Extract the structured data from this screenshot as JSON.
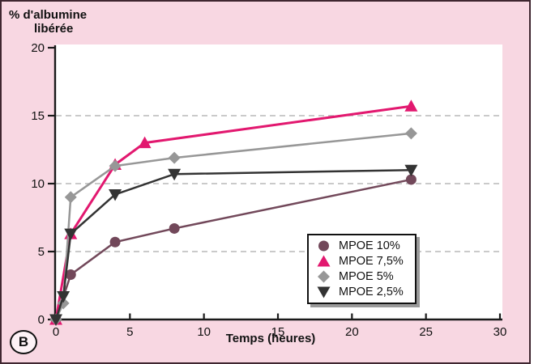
{
  "figure": {
    "panel_label": "B",
    "background_color": "#f8d7e2",
    "border_color": "#3f2630",
    "plot_background": "#ffffff",
    "legend_shadow_color": "#9a9a9a"
  },
  "chart_data": {
    "type": "line",
    "ylabel_lines": [
      "% d'albumine",
      "libérée"
    ],
    "xlabel": "Temps (heures)",
    "xlim": [
      0,
      30
    ],
    "ylim": [
      0,
      20
    ],
    "x_ticks": [
      0,
      5,
      10,
      15,
      20,
      25,
      30
    ],
    "y_ticks": [
      0,
      5,
      10,
      15,
      20
    ],
    "gridlines_y": [
      5,
      10,
      15
    ],
    "grid_style": "dashed",
    "grid_color": "#b9b9b9",
    "axis_color": "#1a1a1a",
    "legend_position": "lower-right",
    "series": [
      {
        "name": "MPOE 10%",
        "marker": "circle",
        "color": "#72485a",
        "points": [
          [
            0,
            0
          ],
          [
            1,
            3.3
          ],
          [
            4,
            5.7
          ],
          [
            8,
            6.7
          ],
          [
            24,
            10.3
          ]
        ]
      },
      {
        "name": "MPOE 7,5%",
        "marker": "triangle-up",
        "color": "#e2186f",
        "points": [
          [
            0,
            0
          ],
          [
            1,
            6.3
          ],
          [
            4,
            11.4
          ],
          [
            6,
            13.0
          ],
          [
            24,
            15.7
          ]
        ]
      },
      {
        "name": "MPOE 5%",
        "marker": "diamond",
        "color": "#979797",
        "points": [
          [
            0,
            0
          ],
          [
            0.5,
            1.2
          ],
          [
            1,
            9.0
          ],
          [
            4,
            11.3
          ],
          [
            8,
            11.9
          ],
          [
            24,
            13.7
          ]
        ]
      },
      {
        "name": "MPOE 2,5%",
        "marker": "triangle-down",
        "color": "#333333",
        "points": [
          [
            0,
            0
          ],
          [
            0.5,
            1.7
          ],
          [
            1,
            6.3
          ],
          [
            4,
            9.2
          ],
          [
            8,
            10.7
          ],
          [
            24,
            11.0
          ]
        ]
      }
    ]
  }
}
